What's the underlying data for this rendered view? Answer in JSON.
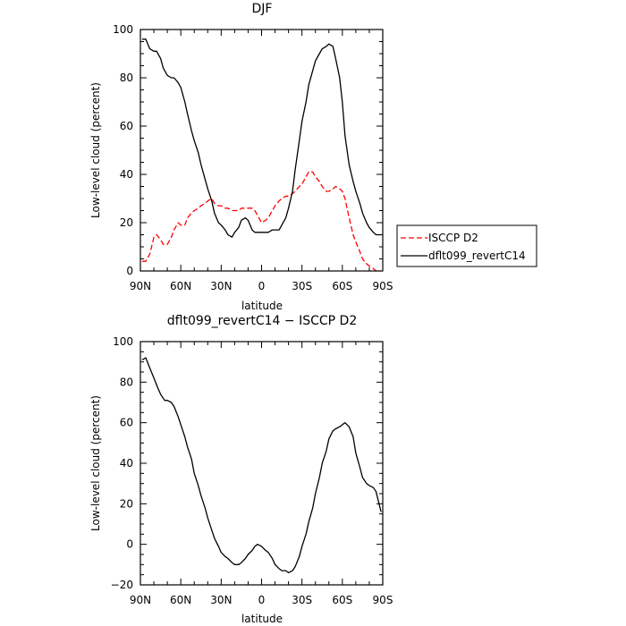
{
  "chart_data": [
    {
      "type": "line",
      "title": "DJF",
      "xlabel": "latitude",
      "ylabel": "Low-level cloud (percent)",
      "xlim": [
        -90,
        90
      ],
      "ylim": [
        0,
        100
      ],
      "xticks": [
        -90,
        -60,
        -30,
        0,
        30,
        60,
        90
      ],
      "xtick_labels": [
        "90N",
        "60N",
        "30N",
        "0",
        "30S",
        "60S",
        "90S"
      ],
      "yticks": [
        0,
        20,
        40,
        60,
        80,
        100
      ],
      "ytick_labels": [
        "0",
        "20",
        "40",
        "60",
        "80",
        "100"
      ],
      "legend_position": "right",
      "series": [
        {
          "name": "ISCCP D2",
          "color": "#ff0000",
          "style": "dashed",
          "x": [
            -88.75,
            -86,
            -83,
            -80,
            -78,
            -75,
            -73,
            -70,
            -67,
            -65,
            -62,
            -60,
            -57,
            -55,
            -52,
            -50,
            -47,
            -45,
            -42,
            -40,
            -37,
            -35,
            -32,
            -30,
            -27,
            -25,
            -22,
            -20,
            -17,
            -15,
            -12,
            -10,
            -7,
            -5,
            -3,
            0,
            3,
            5,
            8,
            10,
            13,
            15,
            18,
            20,
            23,
            25,
            28,
            30,
            33,
            35,
            38,
            40,
            43,
            45,
            48,
            50,
            53,
            55,
            58,
            60,
            62,
            65,
            68,
            70,
            73,
            75,
            78,
            80,
            83,
            85,
            88.75
          ],
          "y": [
            4,
            4,
            7,
            14,
            15,
            13,
            11,
            11,
            14,
            17,
            20,
            19,
            19,
            22,
            24,
            25,
            26,
            27,
            28,
            29,
            30,
            28,
            27,
            27,
            26,
            26,
            25,
            25,
            25,
            26,
            26,
            26,
            26,
            25,
            23,
            20,
            21,
            22,
            25,
            27,
            29,
            30,
            31,
            31,
            32,
            33,
            35,
            36,
            39,
            41,
            41,
            39,
            37,
            35,
            33,
            33,
            34,
            35,
            34,
            33,
            30,
            22,
            15,
            12,
            8,
            5,
            3,
            2,
            1,
            0,
            0
          ]
        },
        {
          "name": "dflt099_revertC14",
          "color": "#000000",
          "style": "solid",
          "x": [
            -88.75,
            -86,
            -83,
            -80,
            -78,
            -75,
            -73,
            -70,
            -67,
            -65,
            -62,
            -60,
            -57,
            -55,
            -52,
            -50,
            -47,
            -45,
            -42,
            -40,
            -37,
            -35,
            -32,
            -30,
            -27,
            -25,
            -22,
            -20,
            -17,
            -15,
            -12,
            -10,
            -7,
            -5,
            -3,
            0,
            3,
            5,
            8,
            10,
            13,
            15,
            18,
            20,
            23,
            25,
            28,
            30,
            33,
            35,
            38,
            40,
            43,
            45,
            48,
            50,
            53,
            55,
            58,
            60,
            62,
            65,
            68,
            70,
            73,
            75,
            78,
            80,
            83,
            85,
            88.75
          ],
          "y": [
            96,
            96,
            92,
            91,
            91,
            88,
            84,
            81,
            80,
            80,
            78,
            76,
            70,
            65,
            58,
            54,
            49,
            44,
            38,
            34,
            29,
            24,
            20,
            19,
            17,
            15,
            14,
            16,
            18,
            21,
            22,
            21,
            17,
            16,
            16,
            16,
            16,
            16,
            17,
            17,
            17,
            19,
            22,
            26,
            33,
            42,
            54,
            62,
            70,
            77,
            83,
            87,
            90,
            92,
            93,
            94,
            93,
            88,
            80,
            70,
            56,
            44,
            37,
            33,
            28,
            24,
            20,
            18,
            16,
            15,
            15
          ]
        }
      ]
    },
    {
      "type": "line",
      "title": "dflt099_revertC14 − ISCCP D2",
      "xlabel": "latitude",
      "ylabel": "Low-level cloud (percent)",
      "xlim": [
        -90,
        90
      ],
      "ylim": [
        -20,
        100
      ],
      "xticks": [
        -90,
        -60,
        -30,
        0,
        30,
        60,
        90
      ],
      "xtick_labels": [
        "90N",
        "60N",
        "30N",
        "0",
        "30S",
        "60S",
        "90S"
      ],
      "yticks": [
        -20,
        0,
        20,
        40,
        60,
        80,
        100
      ],
      "ytick_labels": [
        "−20",
        "0",
        "20",
        "40",
        "60",
        "80",
        "100"
      ],
      "series": [
        {
          "color": "#000000",
          "style": "solid",
          "x": [
            -88.75,
            -86,
            -83,
            -80,
            -77,
            -75,
            -72,
            -70,
            -67,
            -65,
            -62,
            -60,
            -57,
            -55,
            -52,
            -50,
            -47,
            -45,
            -42,
            -40,
            -37,
            -35,
            -32,
            -30,
            -27,
            -25,
            -22,
            -20,
            -17,
            -15,
            -12,
            -10,
            -7,
            -5,
            -3,
            0,
            3,
            5,
            8,
            10,
            13,
            15,
            18,
            20,
            23,
            25,
            28,
            30,
            33,
            35,
            38,
            40,
            43,
            45,
            48,
            50,
            53,
            55,
            58,
            60,
            62,
            65,
            68,
            70,
            73,
            75,
            78,
            80,
            83,
            85,
            88.75
          ],
          "y": [
            91,
            92,
            87,
            82,
            77,
            74,
            71,
            71,
            70,
            68,
            63,
            59,
            53,
            48,
            42,
            35,
            29,
            24,
            18,
            13,
            7,
            3,
            -1,
            -4,
            -6,
            -7,
            -9,
            -10,
            -10,
            -9,
            -7,
            -5,
            -3,
            -1,
            0,
            -1,
            -3,
            -4,
            -7,
            -10,
            -12,
            -13,
            -13,
            -14,
            -13,
            -11,
            -6,
            -1,
            5,
            11,
            18,
            25,
            33,
            40,
            46,
            52,
            56,
            57,
            58,
            59,
            60,
            58,
            53,
            45,
            38,
            33,
            30,
            29,
            28,
            26,
            16
          ]
        }
      ]
    }
  ]
}
